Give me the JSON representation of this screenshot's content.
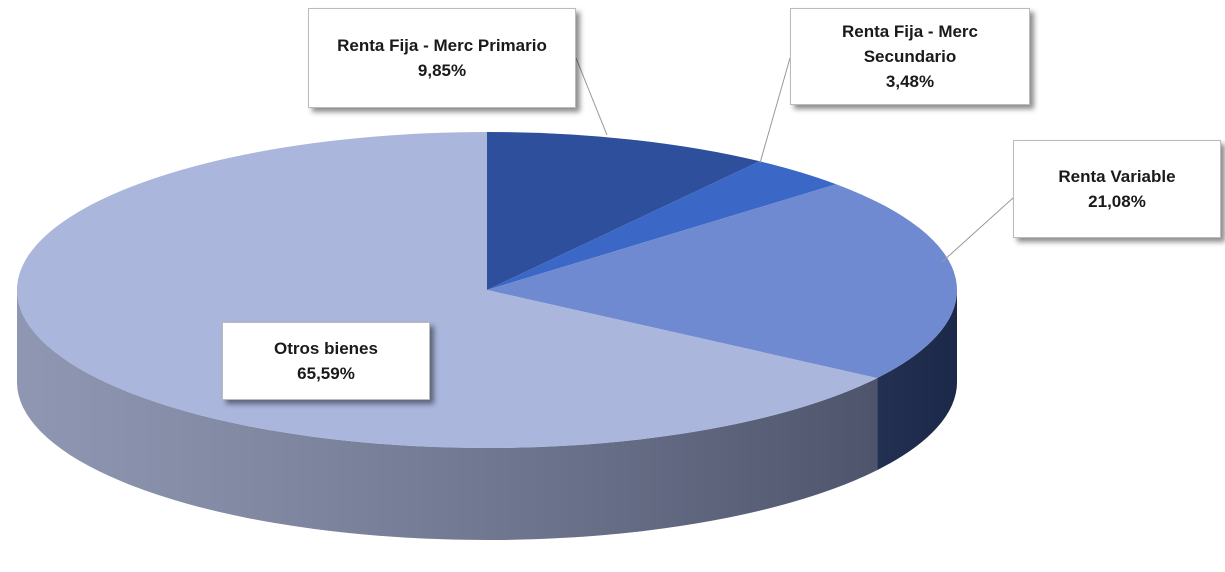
{
  "chart_data": {
    "type": "pie",
    "categories": [
      "Renta Fija - Merc Primario",
      "Renta Fija - Merc Secundario",
      "Renta Variable",
      "Otros bienes"
    ],
    "values": [
      9.85,
      3.48,
      21.08,
      65.59
    ],
    "value_labels": [
      "9,85%",
      "3,48%",
      "21,08%",
      "65,59%"
    ],
    "colors": [
      "#2e4f9c",
      "#3b67c6",
      "#6f8ad0",
      "#aab6dc"
    ],
    "side_colors": [
      "#1f3570",
      "#294a92",
      "#2a3e70",
      "#6a7498"
    ]
  }
}
